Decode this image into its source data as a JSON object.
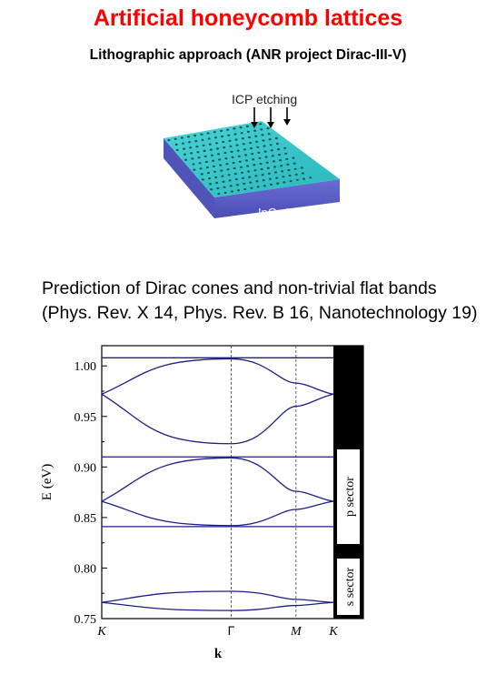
{
  "header": {
    "title": "Artificial honeycomb lattices",
    "subtitle": "Lithographic approach (ANR project Dirac-III-V)"
  },
  "illustration": {
    "etching_label": "ICP etching",
    "material_label": "InGaAs",
    "top_color": "#3cc8c8",
    "side_color": "#5a5ec8"
  },
  "prediction": {
    "line1": "Prediction of Dirac cones and non-trivial flat bands",
    "line2": "(Phys. Rev. X 14, Phys. Rev. B 16, Nanotechnology 19)"
  },
  "chart_data": {
    "type": "line",
    "xlabel": "k",
    "ylabel": "E (eV)",
    "x_ticks": [
      "K",
      "Γ",
      "M",
      "K"
    ],
    "x_positions": [
      0,
      1,
      1.5,
      1.789
    ],
    "ylim": [
      0.75,
      1.02
    ],
    "y_ticks": [
      "0.75",
      "0.80",
      "0.85",
      "0.90",
      "0.95",
      "1.00"
    ],
    "sector_labels": {
      "p": "p sector",
      "s": "s sector"
    },
    "line_color": "#1c1c8c",
    "series": [
      {
        "x": [
          0,
          1,
          1.5,
          1.789
        ],
        "y": [
          0.766,
          0.758,
          0.763,
          0.766
        ]
      },
      {
        "x": [
          0,
          1,
          1.5,
          1.789
        ],
        "y": [
          0.766,
          0.777,
          0.769,
          0.766
        ]
      },
      {
        "x": [
          0,
          1.789
        ],
        "y": [
          0.841,
          0.841
        ]
      },
      {
        "x": [
          0,
          1,
          1.5,
          1.789
        ],
        "y": [
          0.866,
          0.842,
          0.858,
          0.866
        ]
      },
      {
        "x": [
          0,
          1,
          1.5,
          1.789
        ],
        "y": [
          0.866,
          0.909,
          0.876,
          0.866
        ]
      },
      {
        "x": [
          0,
          1.789
        ],
        "y": [
          0.91,
          0.91
        ]
      },
      {
        "x": [
          0,
          1,
          1.5,
          1.789
        ],
        "y": [
          0.972,
          0.923,
          0.96,
          0.972
        ]
      },
      {
        "x": [
          0,
          1,
          1.5,
          1.789
        ],
        "y": [
          0.972,
          1.007,
          0.983,
          0.972
        ]
      },
      {
        "x": [
          0,
          1.789
        ],
        "y": [
          1.008,
          1.008
        ]
      }
    ]
  }
}
